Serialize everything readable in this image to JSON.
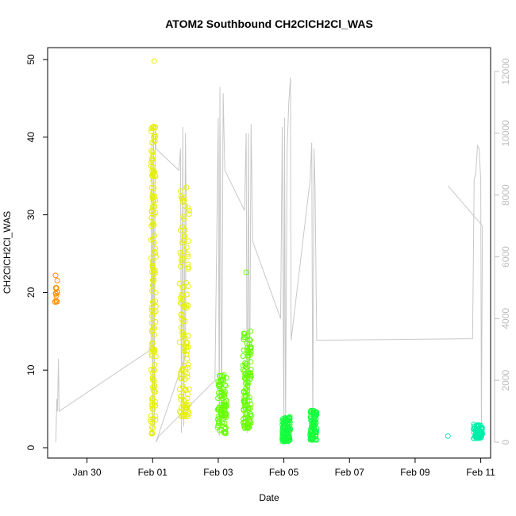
{
  "chart_data": {
    "type": "scatter",
    "title": "ATOM2 Southbound CH2ClCH2Cl_WAS",
    "xlabel": "Date",
    "ylabel": "CH2ClCH2Cl_WAS",
    "x_range_days": [
      -2.2,
      11.3
    ],
    "ylim": [
      0,
      50
    ],
    "y2lim": [
      0,
      12000
    ],
    "x_ticks": [
      {
        "label": "Jan 30",
        "day": -1
      },
      {
        "label": "Feb 01",
        "day": 1
      },
      {
        "label": "Feb 03",
        "day": 3
      },
      {
        "label": "Feb 05",
        "day": 5
      },
      {
        "label": "Feb 07",
        "day": 7
      },
      {
        "label": "Feb 09",
        "day": 9
      },
      {
        "label": "Feb 11",
        "day": 11
      }
    ],
    "y_ticks": [
      0,
      10,
      20,
      30,
      40,
      50
    ],
    "y2_ticks": [
      0,
      2000,
      4000,
      6000,
      8000,
      10000,
      12000
    ],
    "colors": {
      "axis": "#000000",
      "right_axis": "#bdbdbd",
      "altitude_line": "#c8c8c8"
    },
    "series": [
      {
        "color": "#ff8c00",
        "clusters": [
          {
            "x": [
              -1.98,
              -1.9
            ],
            "y": [
              18.5,
              22.3
            ],
            "n": 14
          }
        ]
      },
      {
        "color": "#e6f000",
        "clusters": [
          {
            "x": [
              0.95,
              1.1
            ],
            "y": [
              1.8,
              42.0
            ],
            "n": 140
          },
          {
            "x": [
              1.82,
              2.12
            ],
            "y": [
              4.0,
              34.0
            ],
            "n": 120
          }
        ],
        "extra_points": [
          [
            1.05,
            49.8
          ],
          [
            1.08,
            41.3
          ]
        ]
      },
      {
        "color": "#66ff00",
        "clusters": [
          {
            "x": [
              2.98,
              3.25
            ],
            "y": [
              1.8,
              9.4
            ],
            "n": 90
          },
          {
            "x": [
              3.75,
              4.0
            ],
            "y": [
              2.5,
              15.0
            ],
            "n": 110
          }
        ],
        "extra_points": [
          [
            3.85,
            22.6
          ]
        ]
      },
      {
        "color": "#14ff3c",
        "clusters": [
          {
            "x": [
              4.95,
              5.2
            ],
            "y": [
              0.8,
              4.0
            ],
            "n": 90
          },
          {
            "x": [
              5.8,
              6.0
            ],
            "y": [
              1.0,
              4.8
            ],
            "n": 80
          }
        ]
      },
      {
        "color": "#00eeaa",
        "clusters": [
          {
            "x": [
              10.78,
              11.05
            ],
            "y": [
              1.2,
              3.0
            ],
            "n": 70
          }
        ],
        "extra_points": [
          [
            10.0,
            1.5
          ]
        ]
      }
    ],
    "altitude_trace": {
      "points": [
        [
          -1.95,
          0
        ],
        [
          -1.92,
          1400
        ],
        [
          -1.9,
          1000
        ],
        [
          -1.87,
          2700
        ],
        [
          -1.85,
          1000
        ],
        [
          0.95,
          3000
        ],
        [
          0.98,
          10000
        ],
        [
          1.0,
          200
        ],
        [
          1.03,
          10300
        ],
        [
          1.05,
          500
        ],
        [
          1.08,
          10200
        ],
        [
          1.1,
          9500
        ],
        [
          1.8,
          8800
        ],
        [
          1.85,
          9500
        ],
        [
          1.88,
          300
        ],
        [
          1.92,
          10200
        ],
        [
          1.95,
          500
        ],
        [
          2.0,
          10000
        ],
        [
          2.02,
          8000
        ],
        [
          2.0,
          2800
        ],
        [
          1.1,
          0
        ],
        [
          1.2,
          200
        ],
        [
          2.9,
          2000
        ],
        [
          3.0,
          10500
        ],
        [
          3.03,
          200
        ],
        [
          3.05,
          11500
        ],
        [
          3.1,
          300
        ],
        [
          3.15,
          11300
        ],
        [
          3.2,
          8800
        ],
        [
          3.8,
          7500
        ],
        [
          3.85,
          10000
        ],
        [
          3.88,
          300
        ],
        [
          3.92,
          10000
        ],
        [
          3.95,
          500
        ],
        [
          4.0,
          10300
        ],
        [
          4.05,
          6500
        ],
        [
          4.9,
          4000
        ],
        [
          4.95,
          10200
        ],
        [
          5.0,
          300
        ],
        [
          5.02,
          10500
        ],
        [
          5.05,
          500
        ],
        [
          5.1,
          9500
        ],
        [
          5.15,
          11000
        ],
        [
          5.2,
          11800
        ],
        [
          5.22,
          3300
        ],
        [
          5.8,
          8500
        ],
        [
          5.85,
          9700
        ],
        [
          5.88,
          300
        ],
        [
          5.92,
          9500
        ],
        [
          5.95,
          8200
        ],
        [
          6.0,
          3300
        ],
        [
          10.75,
          3350
        ],
        [
          10.8,
          8500
        ],
        [
          10.85,
          8700
        ],
        [
          10.9,
          9600
        ],
        [
          10.95,
          9500
        ],
        [
          11.0,
          8500
        ],
        [
          11.02,
          300
        ],
        [
          11.05,
          7000
        ],
        [
          10.0,
          8300
        ]
      ]
    }
  }
}
